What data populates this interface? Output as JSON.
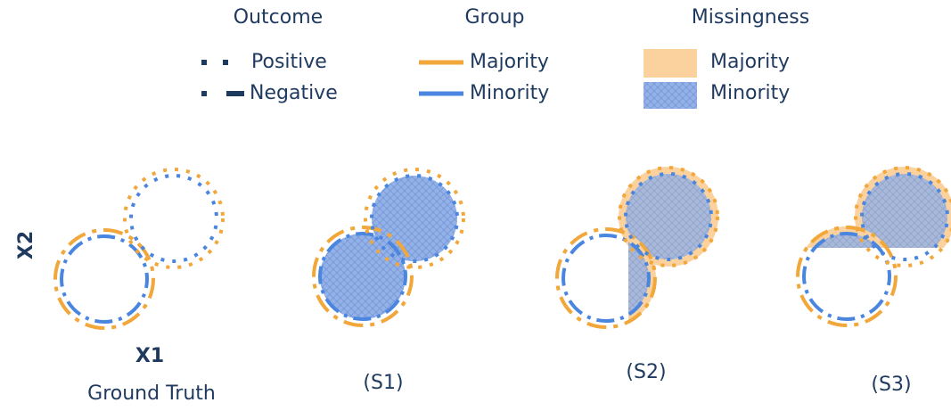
{
  "legend": {
    "outcome": {
      "title": "Outcome",
      "items": [
        "Positive",
        "Negative"
      ]
    },
    "group": {
      "title": "Group",
      "items": [
        "Majority",
        "Minority"
      ]
    },
    "missingness": {
      "title": "Missingness",
      "items": [
        "Majority",
        "Minority"
      ]
    }
  },
  "axes": {
    "x": "X1",
    "y": "X2"
  },
  "panels": [
    "Ground Truth",
    "(S1)",
    "(S2)",
    "(S3)"
  ]
}
